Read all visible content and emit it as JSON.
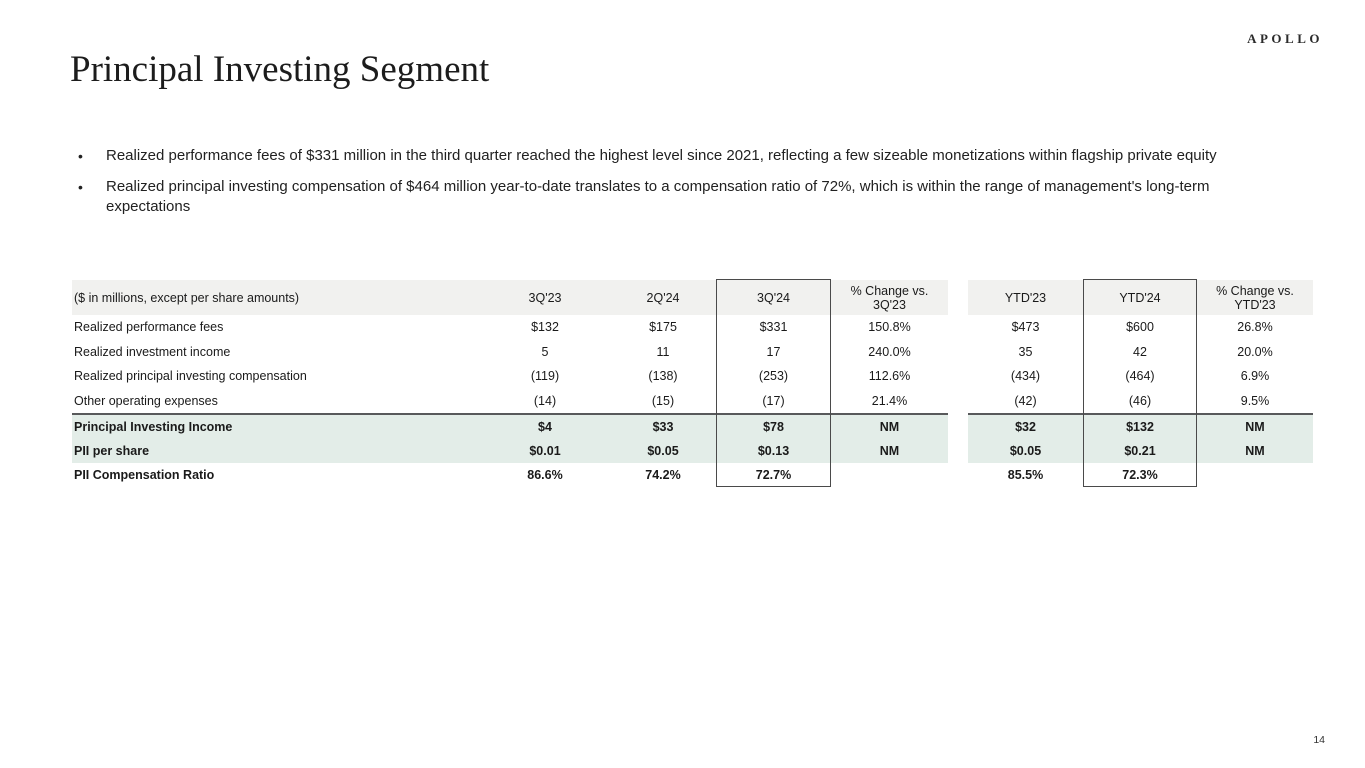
{
  "logo": "APOLLO",
  "title": "Principal Investing Segment",
  "page_number": "14",
  "bullet_char": "•",
  "bullets": [
    "Realized performance fees of $331 million in the third quarter reached the highest level since 2021, reflecting a few sizeable monetizations within flagship private equity",
    "Realized principal investing compensation of $464 million year-to-date translates to a compensation ratio of 72%, which is within the range of management's long-term expectations"
  ],
  "table": {
    "note": "($ in millions, except per share amounts)",
    "columns": [
      "3Q'23",
      "2Q'24",
      "3Q'24",
      "% Change vs.\n3Q'23",
      "YTD'23",
      "YTD'24",
      "% Change vs.\nYTD'23"
    ],
    "boxed_columns": [
      "3Q'24",
      "YTD'24"
    ],
    "rows": [
      {
        "label": "Realized performance fees",
        "values": [
          "$132",
          "$175",
          "$331",
          "150.8%",
          "$473",
          "$600",
          "26.8%"
        ],
        "bold": false,
        "highlight": false
      },
      {
        "label": "Realized investment income",
        "values": [
          "5",
          "11",
          "17",
          "240.0%",
          "35",
          "42",
          "20.0%"
        ],
        "bold": false,
        "highlight": false
      },
      {
        "label": "Realized principal investing compensation",
        "values": [
          "(119)",
          "(138)",
          "(253)",
          "112.6%",
          "(434)",
          "(464)",
          "6.9%"
        ],
        "bold": false,
        "highlight": false
      },
      {
        "label": "Other operating expenses",
        "values": [
          "(14)",
          "(15)",
          "(17)",
          "21.4%",
          "(42)",
          "(46)",
          "9.5%"
        ],
        "bold": false,
        "highlight": false
      },
      {
        "label": "Principal Investing Income",
        "values": [
          "$4",
          "$33",
          "$78",
          "NM",
          "$32",
          "$132",
          "NM"
        ],
        "bold": true,
        "highlight": true
      },
      {
        "label": "PII per share",
        "values": [
          "$0.01",
          "$0.05",
          "$0.13",
          "NM",
          "$0.05",
          "$0.21",
          "NM"
        ],
        "bold": true,
        "highlight": true
      },
      {
        "label": "PII Compensation Ratio",
        "values": [
          "86.6%",
          "74.2%",
          "72.7%",
          "",
          "85.5%",
          "72.3%",
          ""
        ],
        "bold": true,
        "highlight": false
      }
    ],
    "colors": {
      "header_bg": "#f1f1ef",
      "highlight_bg": "#e3ede8",
      "divider": "#58595b",
      "box_border": "#4a4a4a"
    }
  }
}
